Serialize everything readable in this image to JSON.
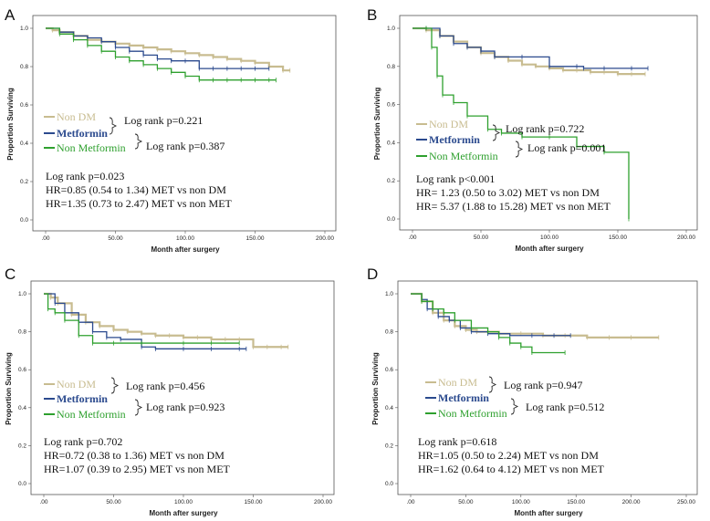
{
  "colors": {
    "nondm": "#c8bc90",
    "metformin": "#2b4a8e",
    "nonmet": "#2ea02e",
    "axis": "#555555",
    "text": "#111111"
  },
  "legend": {
    "nondm": "Non DM",
    "metformin": "Metformin",
    "nonmet": "Non Metformin"
  },
  "chart_data": [
    {
      "type": "line",
      "panel": "A",
      "xlabel": "Month after surgery",
      "ylabel": "Proportion Surviving",
      "xlim": [
        0,
        200
      ],
      "ylim": [
        0,
        1.0
      ],
      "xticks": [
        ".00",
        "50.00",
        "100.00",
        "150.00",
        "200.00"
      ],
      "yticks": [
        "0.0",
        "0.2",
        "0.4",
        "0.6",
        "0.8",
        "1.0"
      ],
      "logrank_pairs": [
        "Log rank p=0.221",
        "Log rank p=0.387"
      ],
      "stats": [
        "Log rank p=0.023",
        "HR=0.85 (0.54 to 1.34)  MET vs non DM",
        "HR=1.35 (0.73 to 2.47)  MET vs non MET"
      ],
      "series": [
        {
          "name": "Non DM",
          "x": [
            0,
            5,
            10,
            20,
            30,
            40,
            50,
            60,
            70,
            80,
            90,
            100,
            110,
            120,
            130,
            140,
            150,
            160,
            170,
            175
          ],
          "y": [
            1.0,
            0.99,
            0.98,
            0.96,
            0.94,
            0.93,
            0.92,
            0.91,
            0.9,
            0.89,
            0.88,
            0.87,
            0.86,
            0.85,
            0.84,
            0.83,
            0.82,
            0.8,
            0.78,
            0.78
          ]
        },
        {
          "name": "Metformin",
          "x": [
            0,
            10,
            20,
            30,
            40,
            50,
            60,
            70,
            80,
            90,
            100,
            110,
            120,
            130,
            140,
            150,
            160
          ],
          "y": [
            1.0,
            0.98,
            0.96,
            0.95,
            0.93,
            0.9,
            0.88,
            0.86,
            0.84,
            0.83,
            0.83,
            0.79,
            0.79,
            0.79,
            0.79,
            0.79,
            0.79
          ]
        },
        {
          "name": "Non Metformin",
          "x": [
            0,
            10,
            20,
            30,
            40,
            50,
            60,
            70,
            80,
            90,
            100,
            110,
            120,
            130,
            140,
            150,
            160,
            165
          ],
          "y": [
            1.0,
            0.97,
            0.94,
            0.91,
            0.88,
            0.85,
            0.83,
            0.81,
            0.79,
            0.77,
            0.75,
            0.73,
            0.73,
            0.73,
            0.73,
            0.73,
            0.73,
            0.73
          ]
        }
      ]
    },
    {
      "type": "line",
      "panel": "B",
      "xlabel": "Month after surgery",
      "ylabel": "Proportion Surviving",
      "xlim": [
        0,
        200
      ],
      "ylim": [
        0,
        1.0
      ],
      "xticks": [
        ".00",
        "50.00",
        "100.00",
        "150.00",
        "200.00"
      ],
      "yticks": [
        "0.0",
        "0.2",
        "0.4",
        "0.6",
        "0.8",
        "1.0"
      ],
      "logrank_pairs": [
        "Log rank p=0.722",
        "Log rank p=0.001"
      ],
      "stats": [
        "Log rank p<0.001",
        "HR= 1.23 (0.50 to 3.02)  MET vs non DM",
        "HR= 5.37 (1.88 to 15.28)  MET vs non MET"
      ],
      "series": [
        {
          "name": "Non DM",
          "x": [
            0,
            10,
            20,
            30,
            40,
            50,
            60,
            70,
            80,
            90,
            100,
            110,
            120,
            130,
            140,
            150,
            160,
            170
          ],
          "y": [
            1.0,
            0.99,
            0.96,
            0.93,
            0.9,
            0.87,
            0.85,
            0.83,
            0.81,
            0.8,
            0.79,
            0.78,
            0.78,
            0.77,
            0.77,
            0.76,
            0.76,
            0.76
          ]
        },
        {
          "name": "Metformin",
          "x": [
            0,
            10,
            20,
            30,
            40,
            50,
            60,
            80,
            100,
            120,
            125,
            140,
            160,
            172
          ],
          "y": [
            1.0,
            1.0,
            0.96,
            0.92,
            0.9,
            0.88,
            0.85,
            0.85,
            0.8,
            0.8,
            0.79,
            0.79,
            0.79,
            0.79
          ]
        },
        {
          "name": "Non Metformin",
          "x": [
            0,
            10,
            14,
            18,
            22,
            30,
            40,
            55,
            65,
            80,
            100,
            120,
            140,
            158
          ],
          "y": [
            1.0,
            1.0,
            0.9,
            0.75,
            0.65,
            0.61,
            0.54,
            0.47,
            0.45,
            0.43,
            0.43,
            0.38,
            0.35,
            0.0
          ]
        }
      ]
    },
    {
      "type": "line",
      "panel": "C",
      "xlabel": "Month after surgery",
      "ylabel": "Proportion Surviving",
      "xlim": [
        0,
        200
      ],
      "ylim": [
        0,
        1.0
      ],
      "xticks": [
        ".00",
        "50.00",
        "100.00",
        "150.00",
        "200.00"
      ],
      "yticks": [
        "0.0",
        "0.2",
        "0.4",
        "0.6",
        "0.8",
        "1.0"
      ],
      "logrank_pairs": [
        "Log rank p=0.456",
        "Log rank p=0.923"
      ],
      "stats": [
        "Log rank p=0.702",
        "HR=0.72 (0.38 to 1.36) MET vs non DM",
        "HR=1.07 (0.39 to 2.95) MET vs non MET"
      ],
      "series": [
        {
          "name": "Non DM",
          "x": [
            0,
            5,
            10,
            20,
            30,
            40,
            50,
            60,
            70,
            80,
            90,
            100,
            110,
            120,
            130,
            140,
            150,
            160,
            170,
            175
          ],
          "y": [
            1.0,
            0.98,
            0.95,
            0.89,
            0.85,
            0.83,
            0.81,
            0.8,
            0.79,
            0.78,
            0.78,
            0.77,
            0.77,
            0.76,
            0.76,
            0.76,
            0.72,
            0.72,
            0.72,
            0.72
          ]
        },
        {
          "name": "Metformin",
          "x": [
            0,
            8,
            15,
            25,
            35,
            45,
            55,
            70,
            80,
            100,
            120,
            140,
            145
          ],
          "y": [
            1.0,
            0.95,
            0.9,
            0.85,
            0.8,
            0.77,
            0.76,
            0.72,
            0.71,
            0.71,
            0.71,
            0.71,
            0.71
          ]
        },
        {
          "name": "Non Metformin",
          "x": [
            0,
            3,
            8,
            15,
            25,
            35,
            50,
            70,
            100,
            120,
            140
          ],
          "y": [
            1.0,
            0.92,
            0.9,
            0.86,
            0.78,
            0.74,
            0.74,
            0.74,
            0.74,
            0.74,
            0.74
          ]
        }
      ]
    },
    {
      "type": "line",
      "panel": "D",
      "xlabel": "Month after surgery",
      "ylabel": "Proportion Surviving",
      "xlim": [
        0,
        250
      ],
      "ylim": [
        0,
        1.0
      ],
      "xticks": [
        ".00",
        "50.00",
        "100.00",
        "150.00",
        "200.00",
        "250.00"
      ],
      "yticks": [
        "0.0",
        "0.2",
        "0.4",
        "0.6",
        "0.8",
        "1.0"
      ],
      "logrank_pairs": [
        "Log rank p=0.947",
        "Log rank p=0.512"
      ],
      "stats": [
        "Log rank p=0.618",
        "HR=1.05 (0.50 to 2.24)  MET vs non DM",
        "HR=1.62 (0.64 to 4.12)  MET vs non MET"
      ],
      "series": [
        {
          "name": "Non DM",
          "x": [
            0,
            10,
            20,
            30,
            40,
            50,
            60,
            80,
            100,
            120,
            140,
            160,
            180,
            200,
            225
          ],
          "y": [
            1.0,
            0.96,
            0.9,
            0.86,
            0.83,
            0.81,
            0.8,
            0.79,
            0.79,
            0.78,
            0.78,
            0.77,
            0.77,
            0.77,
            0.77
          ]
        },
        {
          "name": "Metformin",
          "x": [
            0,
            10,
            15,
            25,
            35,
            45,
            55,
            70,
            90,
            110,
            130,
            145
          ],
          "y": [
            1.0,
            0.97,
            0.92,
            0.88,
            0.86,
            0.82,
            0.8,
            0.79,
            0.78,
            0.78,
            0.78,
            0.78
          ]
        },
        {
          "name": "Non Metformin",
          "x": [
            0,
            10,
            20,
            30,
            40,
            55,
            70,
            80,
            90,
            100,
            110,
            140
          ],
          "y": [
            1.0,
            0.96,
            0.92,
            0.9,
            0.86,
            0.82,
            0.8,
            0.77,
            0.74,
            0.72,
            0.69,
            0.69
          ]
        }
      ]
    }
  ]
}
